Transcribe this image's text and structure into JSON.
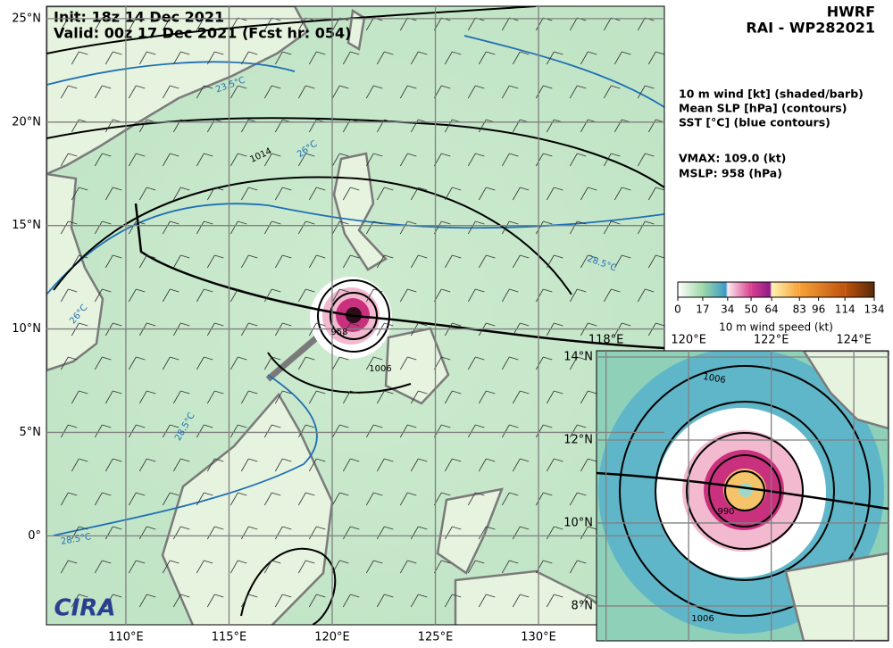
{
  "header": {
    "init": "Init:   18z 14 Dec 2021",
    "valid": "Valid: 00z 17 Dec 2021 (Fcst hr: 054)",
    "model": "HWRF",
    "storm": "RAI - WP282021"
  },
  "legend": [
    "10 m wind [kt] (shaded/barb)",
    "Mean SLP [hPa] (contours)",
    "SST [°C] (blue contours)"
  ],
  "stats": [
    "VMAX: 109.0 (kt)",
    "MSLP:  958 (hPa)"
  ],
  "colorbar": {
    "label": "10 m wind speed (kt)",
    "lim": [
      0,
      134
    ],
    "ticks": [
      0,
      17,
      34,
      50,
      64,
      83,
      96,
      114,
      134
    ],
    "stops": [
      {
        "value": 0,
        "color": "#ffffff"
      },
      {
        "value": 17,
        "color": "#9fd8a8"
      },
      {
        "value": 33,
        "color": "#3a9ac8"
      },
      {
        "value": 34,
        "color": "#fbe9ee"
      },
      {
        "value": 50,
        "color": "#d9418f"
      },
      {
        "value": 63,
        "color": "#8d1a8a"
      },
      {
        "value": 64,
        "color": "#fff3b0"
      },
      {
        "value": 83,
        "color": "#f7a23a"
      },
      {
        "value": 114,
        "color": "#c0530e"
      },
      {
        "value": 134,
        "color": "#5a2a08"
      }
    ]
  },
  "main_map": {
    "xlim": [
      106.15,
      136.1
    ],
    "ylim": [
      -4.3,
      25.6
    ],
    "xticks": [
      {
        "value": 110,
        "label": "110°E"
      },
      {
        "value": 115,
        "label": "115°E"
      },
      {
        "value": 120,
        "label": "120°E"
      },
      {
        "value": 125,
        "label": "125°E"
      },
      {
        "value": 130,
        "label": "130°E"
      }
    ],
    "yticks": [
      {
        "value": 0,
        "label": "0°"
      },
      {
        "value": 5,
        "label": "5°N"
      },
      {
        "value": 10,
        "label": "10°N"
      },
      {
        "value": 15,
        "label": "15°N"
      },
      {
        "value": 20,
        "label": "20°N"
      },
      {
        "value": 25,
        "label": "25°N"
      }
    ],
    "annotations": [
      "1014",
      "1006",
      "958",
      "26°C",
      "26°C",
      "28.5°C",
      "28.5°C",
      "23.5°C",
      "28.5°C"
    ]
  },
  "inset_map": {
    "xlim": [
      117.77,
      124.84
    ],
    "ylim": [
      7.16,
      14.15
    ],
    "xticks": [
      {
        "value": 118,
        "label": "118°E"
      },
      {
        "value": 120,
        "label": "120°E"
      },
      {
        "value": 122,
        "label": "122°E"
      },
      {
        "value": 124,
        "label": "124°E"
      }
    ],
    "yticks": [
      {
        "value": 8,
        "label": "8°N"
      },
      {
        "value": 10,
        "label": "10°N"
      },
      {
        "value": 12,
        "label": "12°N"
      },
      {
        "value": 14,
        "label": "14°N"
      }
    ],
    "annotations": [
      "1006",
      "1006",
      "990"
    ]
  },
  "logo": "CIRA"
}
